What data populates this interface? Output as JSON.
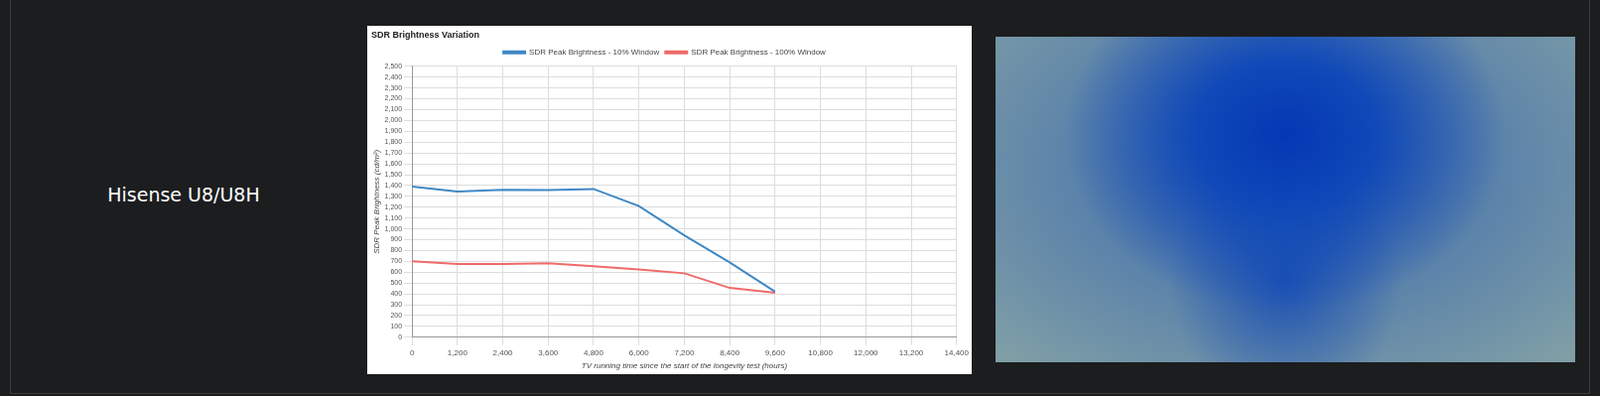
{
  "row_label": "Hisense U8/U8H",
  "chart_data": {
    "type": "line",
    "title": "SDR Brightness Variation",
    "x_label": "TV running time since the start of the longevity test (hours)",
    "y_label": "SDR Peak Brightness (cd/m²)",
    "x": [
      0,
      1200,
      2400,
      3600,
      4800,
      6000,
      7200,
      8400,
      9600
    ],
    "series": [
      {
        "name": "SDR Peak Brightness - 10% Window",
        "color": "#3f88c5",
        "values": [
          1390,
          1345,
          1360,
          1358,
          1368,
          1210,
          940,
          690,
          420
        ]
      },
      {
        "name": "SDR Peak Brightness - 100% Window",
        "color": "#f06a6a",
        "values": [
          700,
          675,
          675,
          682,
          655,
          625,
          590,
          455,
          410
        ]
      }
    ],
    "xlim": [
      0,
      14400
    ],
    "xticks": [
      0,
      {
        "value": 1200,
        "label": "1,200"
      },
      {
        "value": 2400,
        "label": "2,400"
      },
      {
        "value": 3600,
        "label": "3,600"
      },
      {
        "value": 4800,
        "label": "4,800"
      },
      {
        "value": 6000,
        "label": "6,000"
      },
      {
        "value": 7200,
        "label": "7,200"
      },
      {
        "value": 8400,
        "label": "8,400"
      },
      {
        "value": 9600,
        "label": "9,600"
      },
      {
        "value": 10800,
        "label": "10,800"
      },
      {
        "value": 12000,
        "label": "12,000"
      },
      {
        "value": 13200,
        "label": "13,200"
      },
      {
        "value": 14400,
        "label": "14,400"
      }
    ],
    "ylim": [
      0,
      2500
    ],
    "yticks": [
      0,
      100,
      200,
      300,
      400,
      500,
      600,
      700,
      800,
      900,
      {
        "value": 1000,
        "label": "1,000"
      },
      {
        "value": 1100,
        "label": "1,100"
      },
      {
        "value": 1200,
        "label": "1,200"
      },
      {
        "value": 1300,
        "label": "1,300"
      },
      {
        "value": 1400,
        "label": "1,400"
      },
      {
        "value": 1500,
        "label": "1,500"
      },
      {
        "value": 1600,
        "label": "1,600"
      },
      {
        "value": 1700,
        "label": "1,700"
      },
      {
        "value": 1800,
        "label": "1,800"
      },
      {
        "value": 1900,
        "label": "1,900"
      },
      {
        "value": 2000,
        "label": "2,000"
      },
      {
        "value": 2100,
        "label": "2,100"
      },
      {
        "value": 2200,
        "label": "2,200"
      },
      {
        "value": 2300,
        "label": "2,300"
      },
      {
        "value": 2400,
        "label": "2,400"
      },
      {
        "value": 2500,
        "label": "2,500"
      }
    ],
    "grid": true,
    "legend": "top"
  }
}
